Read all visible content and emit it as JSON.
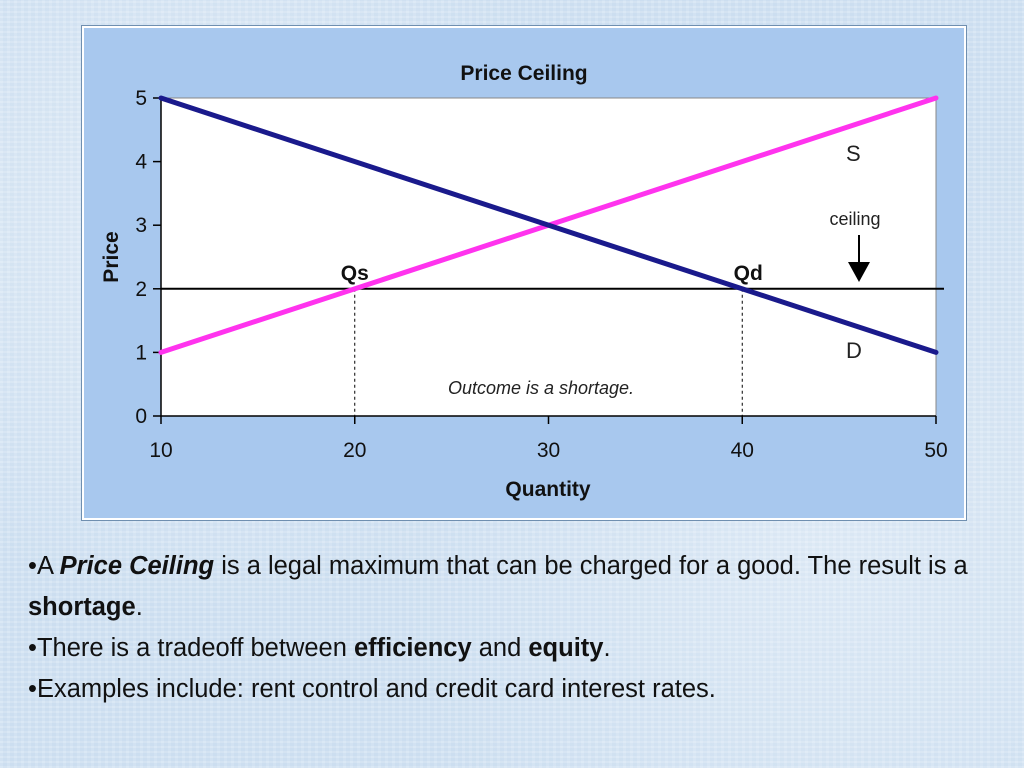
{
  "chart_data": {
    "type": "line",
    "title": "Price Ceiling",
    "xlabel": "Quantity",
    "ylabel": "Price",
    "xlim": [
      10,
      50
    ],
    "ylim": [
      0,
      5
    ],
    "x_ticks": [
      10,
      20,
      30,
      40,
      50
    ],
    "y_ticks": [
      0,
      1,
      2,
      3,
      4,
      5
    ],
    "grid": false,
    "series": [
      {
        "name": "S",
        "color": "#ff33ee",
        "x": [
          10,
          50
        ],
        "y": [
          1,
          5
        ]
      },
      {
        "name": "D",
        "color": "#1a1a8c",
        "x": [
          10,
          50
        ],
        "y": [
          5,
          1
        ]
      }
    ],
    "ceiling_line": {
      "y": 2,
      "color": "#000000"
    },
    "markers": [
      {
        "label": "Qs",
        "x": 20,
        "y": 2
      },
      {
        "label": "Qd",
        "x": 40,
        "y": 2
      }
    ],
    "annotations": {
      "ceiling": "ceiling",
      "outcome": "Outcome is a shortage.",
      "supply_label": "S",
      "demand_label": "D"
    },
    "colors": {
      "frame_bg": "#a8c8ee",
      "plot_bg": "#ffffff"
    }
  },
  "bullets": [
    {
      "marker": "•",
      "parts": [
        {
          "text": "A ",
          "style": "normal"
        },
        {
          "text": "Price Ceiling",
          "style": "bold-italic"
        },
        {
          "text": " is a legal maximum that can be charged for a good. The result is a ",
          "style": "normal"
        },
        {
          "text": "shortage",
          "style": "bold"
        },
        {
          "text": ".",
          "style": "normal"
        }
      ]
    },
    {
      "marker": "•",
      "parts": [
        {
          "text": "There is a tradeoff between ",
          "style": "normal"
        },
        {
          "text": "efficiency",
          "style": "bold"
        },
        {
          "text": " and ",
          "style": "normal"
        },
        {
          "text": "equity",
          "style": "bold"
        },
        {
          "text": ".",
          "style": "normal"
        }
      ]
    },
    {
      "marker": "•",
      "parts": [
        {
          "text": "Examples include: rent control and credit card interest rates.",
          "style": "normal"
        }
      ]
    }
  ]
}
